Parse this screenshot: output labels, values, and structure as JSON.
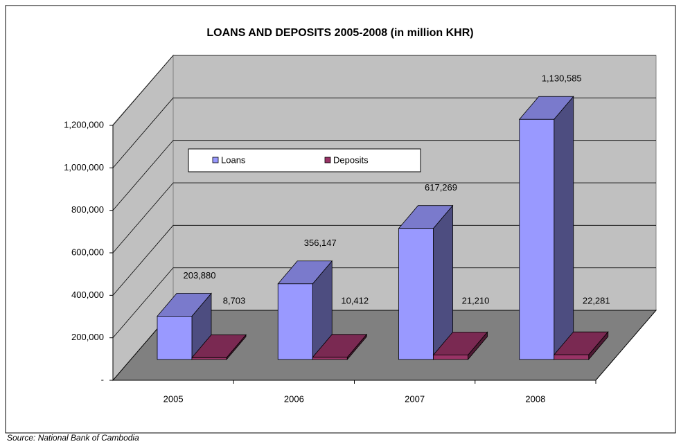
{
  "chart_data": {
    "type": "bar3d",
    "title": "LOANS AND DEPOSITS 2005-2008 (in million KHR)",
    "categories": [
      "2005",
      "2006",
      "2007",
      "2008"
    ],
    "series": [
      {
        "name": "Loans",
        "color": "#9999ff",
        "values": [
          203880,
          356147,
          617269,
          1130585
        ],
        "value_labels": [
          "203,880",
          "356,147",
          "617,269",
          "1,130,585"
        ]
      },
      {
        "name": "Deposits",
        "color": "#993366",
        "values": [
          8703,
          10412,
          21210,
          22281
        ],
        "value_labels": [
          "8,703",
          "10,412",
          "21,210",
          "22,281"
        ]
      }
    ],
    "ylim": [
      0,
      1200000
    ],
    "yticks": [
      {
        "value": 0,
        "label": "-"
      },
      {
        "value": 200000,
        "label": "200,000"
      },
      {
        "value": 400000,
        "label": "400,000"
      },
      {
        "value": 600000,
        "label": "600,000"
      },
      {
        "value": 800000,
        "label": "800,000"
      },
      {
        "value": 1000000,
        "label": "1,000,000"
      },
      {
        "value": 1200000,
        "label": "1,200,000"
      }
    ],
    "grid": true,
    "source": "Source: National Bank of Cambodia"
  }
}
